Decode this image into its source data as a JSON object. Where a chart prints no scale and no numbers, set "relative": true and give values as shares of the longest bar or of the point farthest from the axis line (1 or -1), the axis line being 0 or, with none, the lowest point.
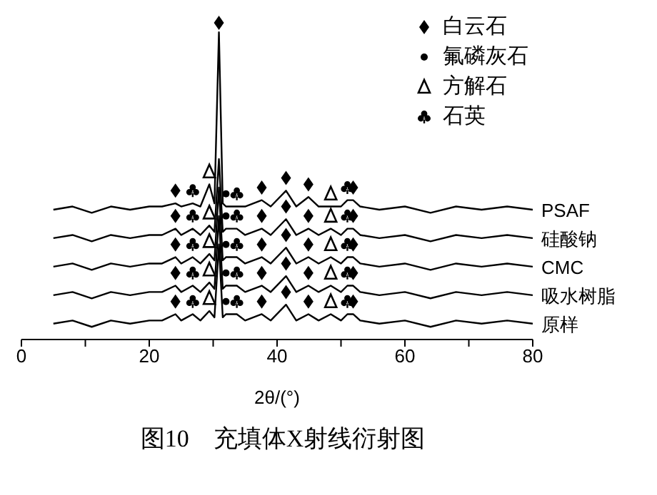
{
  "chart_data": {
    "type": "line",
    "title": "图10　充填体X射线衍射图",
    "xlabel": "2θ/(°)",
    "relative": true,
    "legend": "top right",
    "xlim": [
      0,
      80
    ],
    "xticks": [
      0,
      {
        "value": 10,
        "label": null
      },
      20,
      {
        "value": 30,
        "label": null
      },
      40,
      {
        "value": 50,
        "label": null
      },
      60,
      {
        "value": 70,
        "label": null
      },
      80
    ],
    "series": [
      {
        "name": "PSAF",
        "color": "#000000",
        "x": [
          5,
          8,
          11,
          14,
          17,
          20,
          22,
          24.1,
          25,
          26.8,
          28,
          29.4,
          30.2,
          30.9,
          31.5,
          32,
          33.7,
          35,
          37.6,
          39,
          41.4,
          43,
          44.9,
          46.5,
          48.4,
          50,
          51,
          51.9,
          53,
          56,
          60,
          64,
          68,
          72,
          76,
          80
        ],
        "values": [
          0.41,
          0.42,
          0.4,
          0.42,
          0.41,
          0.42,
          0.42,
          0.43,
          0.42,
          0.43,
          0.42,
          0.49,
          0.43,
          0.97,
          0.43,
          0.42,
          0.42,
          0.42,
          0.44,
          0.42,
          0.47,
          0.42,
          0.45,
          0.42,
          0.42,
          0.42,
          0.44,
          0.44,
          0.42,
          0.41,
          0.42,
          0.4,
          0.42,
          0.41,
          0.42,
          0.41
        ]
      },
      {
        "name": "硅酸钠",
        "color": "#000000",
        "x": [
          5,
          8,
          11,
          14,
          17,
          20,
          22,
          24.1,
          25,
          26.8,
          28,
          29.4,
          30.2,
          30.9,
          31.5,
          32,
          33.7,
          35,
          37.6,
          39,
          41.4,
          43,
          44.9,
          46.5,
          48.4,
          50,
          51,
          51.9,
          53,
          56,
          60,
          64,
          68,
          72,
          76,
          80
        ],
        "values": [
          0.32,
          0.33,
          0.31,
          0.33,
          0.32,
          0.33,
          0.33,
          0.35,
          0.33,
          0.35,
          0.33,
          0.36,
          0.34,
          0.57,
          0.34,
          0.35,
          0.35,
          0.33,
          0.35,
          0.33,
          0.38,
          0.33,
          0.35,
          0.33,
          0.35,
          0.33,
          0.35,
          0.35,
          0.33,
          0.32,
          0.33,
          0.31,
          0.33,
          0.32,
          0.33,
          0.32
        ]
      },
      {
        "name": "CMC",
        "color": "#000000",
        "x": [
          5,
          8,
          11,
          14,
          17,
          20,
          22,
          24.1,
          25,
          26.8,
          28,
          29.4,
          30.2,
          30.9,
          31.5,
          32,
          33.7,
          35,
          37.6,
          39,
          41.4,
          43,
          44.9,
          46.5,
          48.4,
          50,
          51,
          51.9,
          53,
          56,
          60,
          64,
          68,
          72,
          76,
          80
        ],
        "values": [
          0.23,
          0.24,
          0.22,
          0.24,
          0.23,
          0.24,
          0.24,
          0.26,
          0.24,
          0.26,
          0.24,
          0.27,
          0.25,
          0.48,
          0.25,
          0.26,
          0.26,
          0.24,
          0.26,
          0.24,
          0.29,
          0.24,
          0.26,
          0.24,
          0.26,
          0.24,
          0.26,
          0.26,
          0.24,
          0.23,
          0.24,
          0.22,
          0.24,
          0.23,
          0.24,
          0.23
        ]
      },
      {
        "name": "吸水树脂",
        "color": "#000000",
        "x": [
          5,
          8,
          11,
          14,
          17,
          20,
          22,
          24.1,
          25,
          26.8,
          28,
          29.4,
          30.2,
          30.9,
          31.5,
          32,
          33.7,
          35,
          37.6,
          39,
          41.4,
          43,
          44.9,
          46.5,
          48.4,
          50,
          51,
          51.9,
          53,
          56,
          60,
          64,
          68,
          72,
          76,
          80
        ],
        "values": [
          0.14,
          0.15,
          0.13,
          0.15,
          0.14,
          0.15,
          0.15,
          0.17,
          0.15,
          0.17,
          0.15,
          0.18,
          0.16,
          0.39,
          0.16,
          0.17,
          0.17,
          0.15,
          0.17,
          0.15,
          0.2,
          0.15,
          0.17,
          0.15,
          0.17,
          0.15,
          0.17,
          0.17,
          0.15,
          0.14,
          0.15,
          0.13,
          0.15,
          0.14,
          0.15,
          0.14
        ]
      },
      {
        "name": "原样",
        "color": "#000000",
        "x": [
          5,
          8,
          11,
          14,
          17,
          20,
          22,
          24.1,
          25,
          26.8,
          28,
          29.4,
          30.2,
          30.9,
          31.5,
          32,
          33.7,
          35,
          37.6,
          39,
          41.4,
          43,
          44.9,
          46.5,
          48.4,
          50,
          51,
          51.9,
          53,
          56,
          60,
          64,
          68,
          72,
          76,
          80
        ],
        "values": [
          0.05,
          0.06,
          0.04,
          0.06,
          0.05,
          0.06,
          0.06,
          0.08,
          0.06,
          0.08,
          0.06,
          0.09,
          0.07,
          0.3,
          0.07,
          0.08,
          0.08,
          0.06,
          0.08,
          0.06,
          0.11,
          0.06,
          0.08,
          0.06,
          0.08,
          0.06,
          0.08,
          0.08,
          0.06,
          0.05,
          0.06,
          0.04,
          0.06,
          0.05,
          0.06,
          0.05
        ]
      },
      {
        "name": "白云石",
        "type": "scatter",
        "marker": "diamond",
        "color": "#000000",
        "x": [
          30.9,
          24.1,
          37.6,
          41.4,
          44.9,
          51.9,
          24.1,
          37.6,
          41.4,
          44.9,
          51.9,
          24.1,
          37.6,
          41.4,
          44.9,
          51.9,
          24.1,
          37.6,
          41.4,
          44.9,
          51.9,
          24.1,
          37.6,
          41.4,
          44.9,
          51.9
        ],
        "values": [
          1.0,
          0.47,
          0.48,
          0.51,
          0.49,
          0.48,
          0.39,
          0.39,
          0.42,
          0.39,
          0.39,
          0.3,
          0.3,
          0.33,
          0.3,
          0.3,
          0.21,
          0.21,
          0.24,
          0.21,
          0.21,
          0.12,
          0.12,
          0.15,
          0.12,
          0.12
        ]
      },
      {
        "name": "氟磷灰石",
        "type": "scatter",
        "marker": "circle",
        "color": "#000000",
        "x": [
          32,
          32,
          32,
          32,
          32
        ],
        "values": [
          0.46,
          0.39,
          0.3,
          0.21,
          0.12
        ]
      },
      {
        "name": "方解石",
        "type": "scatter",
        "marker": "triangle",
        "color": "#000000",
        "x": [
          29.4,
          29.4,
          29.4,
          29.4,
          29.4,
          48.4,
          48.4,
          48.4,
          48.4,
          48.4
        ],
        "values": [
          0.53,
          0.4,
          0.31,
          0.22,
          0.13,
          0.46,
          0.39,
          0.3,
          0.21,
          0.12
        ]
      },
      {
        "name": "石英",
        "type": "scatter",
        "color": "#000000",
        "x": [
          26.8,
          26.8,
          26.8,
          26.8,
          26.8,
          33.7,
          33.7,
          33.7,
          33.7,
          33.7,
          51,
          51,
          51,
          51,
          51
        ],
        "values": [
          0.47,
          0.39,
          0.3,
          0.21,
          0.12,
          0.46,
          0.39,
          0.3,
          0.21,
          0.12,
          0.48,
          0.39,
          0.3,
          0.21,
          0.12
        ]
      }
    ]
  }
}
